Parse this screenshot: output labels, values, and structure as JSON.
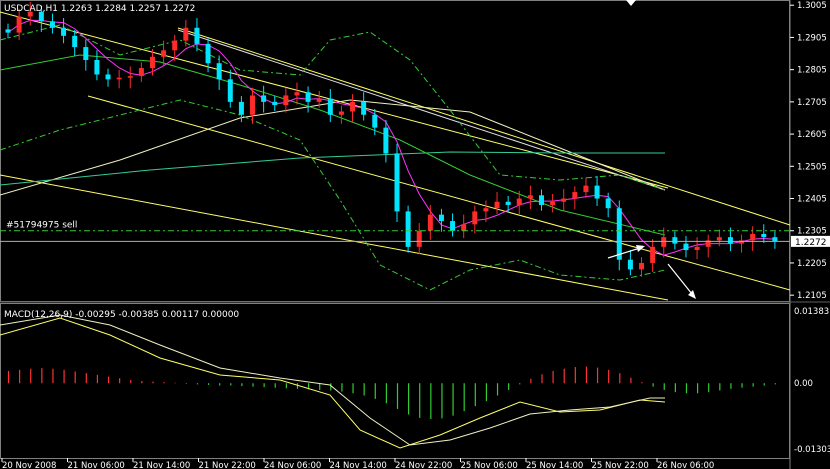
{
  "window": {
    "symbol_line": "USDCAD,H1  1.2263 1.2284 1.2257 1.2272",
    "order_label": "#51794975 sell",
    "current_price": "1.2272"
  },
  "macd": {
    "title": "MACD(12,26,9) -0.00295 -0.00385 0.00117 0.00000",
    "scale": [
      "0.01383",
      "0.00",
      "-0.01303"
    ]
  },
  "colors": {
    "bull_candle": "#ff2a2a",
    "bear_candle": "#00e5ff",
    "channel": "#ffff66",
    "ma_fast": "#ff33ff",
    "ma_slow": "#33cc33",
    "ma_long": "#33cc99",
    "bollinger": "#33cc33",
    "macd_pos": "#ff3333",
    "macd_neg": "#33cc33"
  },
  "chart_data": {
    "type": "candlestick",
    "symbol": "USDCAD",
    "timeframe": "H1",
    "ohlc_header": {
      "open": 1.2263,
      "high": 1.2284,
      "low": 1.2257,
      "close": 1.2272
    },
    "y_ticks": [
      1.3005,
      1.2905,
      1.2805,
      1.2705,
      1.2605,
      1.2505,
      1.2405,
      1.2305,
      1.2205,
      1.2105
    ],
    "ylim": [
      1.209,
      1.3015
    ],
    "order_level": 1.2305,
    "current_level": 1.2272,
    "x_ticks": [
      "20 Nov 2008",
      "21 Nov 06:00",
      "21 Nov 14:00",
      "21 Nov 22:00",
      "24 Nov 06:00",
      "24 Nov 14:00",
      "24 Nov 22:00",
      "25 Nov 06:00",
      "25 Nov 14:00",
      "25 Nov 22:00",
      "26 Nov 06:00"
    ],
    "close_path": [
      1.292,
      1.297,
      1.2985,
      1.2955,
      1.2935,
      1.291,
      1.2875,
      1.2835,
      1.279,
      1.2775,
      1.278,
      1.2785,
      1.281,
      1.2845,
      1.2865,
      1.2895,
      1.2935,
      1.2885,
      1.2825,
      1.2775,
      1.2705,
      1.2665,
      1.2725,
      1.2705,
      1.2695,
      1.2725,
      1.2735,
      1.2705,
      1.2715,
      1.2665,
      1.2675,
      1.2705,
      1.2665,
      1.2625,
      1.2545,
      1.2365,
      1.2255,
      1.2305,
      1.2355,
      1.2335,
      1.2305,
      1.2325,
      1.2365,
      1.2375,
      1.2395,
      1.2385,
      1.2405,
      1.2415,
      1.2385,
      1.2395,
      1.2405,
      1.2425,
      1.2445,
      1.2405,
      1.2375,
      1.2215,
      1.2185,
      1.2205,
      1.2255,
      1.2285,
      1.2265,
      1.2245,
      1.2255,
      1.2275,
      1.2285,
      1.2265,
      1.2275,
      1.2295,
      1.2285,
      1.2272
    ],
    "macd_hist": [
      0.0022,
      0.0024,
      0.0026,
      0.0027,
      0.0026,
      0.0024,
      0.0021,
      0.0018,
      0.0015,
      0.0012,
      0.0009,
      0.0006,
      0.0004,
      0.0003,
      0.0002,
      0.0001,
      -0.0001,
      -0.0002,
      -0.0003,
      -0.0004,
      -0.0004,
      -0.0005,
      -0.0006,
      -0.0007,
      -0.0008,
      -0.0009,
      -0.001,
      -0.0011,
      -0.0012,
      -0.0013,
      -0.0015,
      -0.0018,
      -0.0022,
      -0.0028,
      -0.0036,
      -0.0046,
      -0.0056,
      -0.0062,
      -0.0064,
      -0.0063,
      -0.0058,
      -0.005,
      -0.0041,
      -0.0032,
      -0.0022,
      -0.0012,
      -0.0002,
      0.0008,
      0.0016,
      0.0022,
      0.0026,
      0.0029,
      0.003,
      0.0028,
      0.0024,
      0.0018,
      0.001,
      0.0002,
      -0.0006,
      -0.0012,
      -0.0016,
      -0.0018,
      -0.0018,
      -0.0016,
      -0.0013,
      -0.001,
      -0.0008,
      -0.0006,
      -0.0004,
      -0.0002
    ],
    "macd_ylim": [
      -0.01303,
      0.01383
    ]
  }
}
